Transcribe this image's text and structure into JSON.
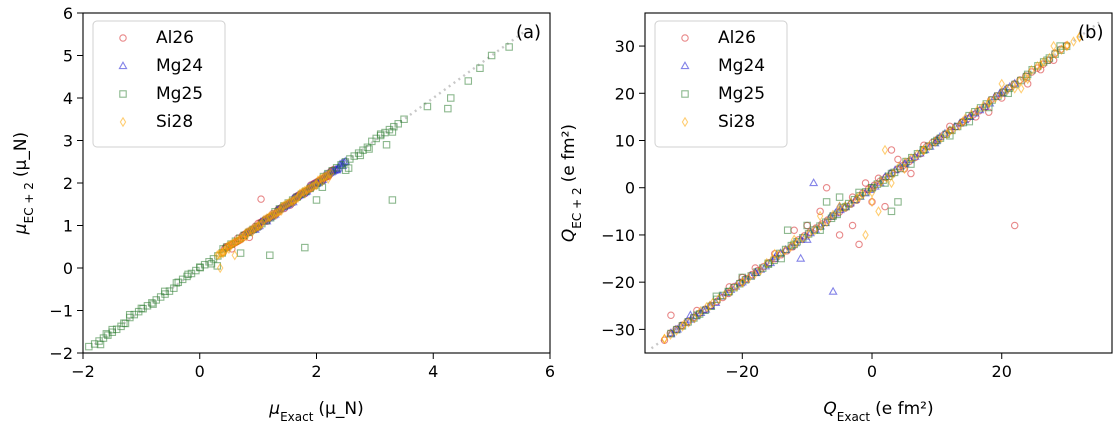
{
  "chart_data": [
    {
      "type": "scatter",
      "panel_label": "(a)",
      "xlabel": "μ_Exact (μ_N)",
      "ylabel": "μ_EC+2 (μ_N)",
      "xlim": [
        -2,
        6
      ],
      "ylim": [
        -2,
        6
      ],
      "xticks": [
        -2,
        0,
        2,
        4,
        6
      ],
      "yticks": [
        -2,
        -1,
        0,
        1,
        2,
        3,
        4,
        5,
        6
      ],
      "legend_position": "top-left",
      "reference_line": {
        "style": "dotted",
        "color": "#c8c8c8",
        "x": [
          -1.8,
          5.6
        ],
        "y": [
          -1.8,
          5.6
        ]
      },
      "series": [
        {
          "name": "Al26",
          "marker": "circle",
          "color": "#d62728",
          "points": [
            [
              0.85,
              0.72
            ],
            [
              1.05,
              1.62
            ],
            [
              1.25,
              1.28
            ],
            [
              0.55,
              0.45
            ],
            [
              1.55,
              1.48
            ],
            [
              0.95,
              0.98
            ],
            [
              1.35,
              1.32
            ],
            [
              0.75,
              0.72
            ],
            [
              1.9,
              1.95
            ],
            [
              2.1,
              2.05
            ],
            [
              1.15,
              1.1
            ],
            [
              0.65,
              0.7
            ],
            [
              1.45,
              1.4
            ],
            [
              1.7,
              1.68
            ],
            [
              0.45,
              0.5
            ],
            [
              1.0,
              1.05
            ],
            [
              1.8,
              1.75
            ],
            [
              2.2,
              2.15
            ]
          ],
          "dense_segment": [
            0.4,
            2.3
          ]
        },
        {
          "name": "Mg24",
          "marker": "triangle",
          "color": "#1f1fd6",
          "points": [
            [
              2.35,
              2.3
            ],
            [
              2.45,
              2.4
            ],
            [
              1.15,
              1.1
            ],
            [
              0.95,
              0.9
            ],
            [
              1.6,
              1.55
            ],
            [
              2.0,
              1.98
            ]
          ],
          "dense_segment": [
            0.8,
            2.5
          ]
        },
        {
          "name": "Mg25",
          "marker": "square",
          "color": "#2e7d32",
          "points": [
            [
              -1.9,
              -1.85
            ],
            [
              -1.7,
              -1.8
            ],
            [
              -1.5,
              -1.45
            ],
            [
              -1.3,
              -1.3
            ],
            [
              -1.2,
              -1.1
            ],
            [
              -1.0,
              -0.95
            ],
            [
              -0.8,
              -0.85
            ],
            [
              -0.6,
              -0.55
            ],
            [
              -0.4,
              -0.35
            ],
            [
              -0.2,
              -0.15
            ],
            [
              0.0,
              0.02
            ],
            [
              0.2,
              0.1
            ],
            [
              0.4,
              0.45
            ],
            [
              0.7,
              0.35
            ],
            [
              1.2,
              0.3
            ],
            [
              1.8,
              0.48
            ],
            [
              2.0,
              1.6
            ],
            [
              2.1,
              1.9
            ],
            [
              2.5,
              2.3
            ],
            [
              2.9,
              2.8
            ],
            [
              3.1,
              3.15
            ],
            [
              3.3,
              3.2
            ],
            [
              3.5,
              3.5
            ],
            [
              3.2,
              2.9
            ],
            [
              3.9,
              3.8
            ],
            [
              4.3,
              4.0
            ],
            [
              4.25,
              3.75
            ],
            [
              4.6,
              4.4
            ],
            [
              4.8,
              4.7
            ],
            [
              5.0,
              5.0
            ],
            [
              5.3,
              5.2
            ],
            [
              3.3,
              1.6
            ],
            [
              2.55,
              2.35
            ],
            [
              2.75,
              2.65
            ],
            [
              -1.6,
              -1.55
            ],
            [
              0.3,
              0.05
            ]
          ],
          "dense_segment": [
            -1.8,
            3.4
          ]
        },
        {
          "name": "Si28",
          "marker": "diamond",
          "color": "#ffa500",
          "points": [
            [
              0.5,
              0.45
            ],
            [
              0.6,
              0.3
            ],
            [
              0.4,
              0.35
            ],
            [
              0.35,
              0.0
            ],
            [
              0.8,
              0.75
            ],
            [
              1.0,
              0.98
            ],
            [
              1.2,
              1.2
            ],
            [
              1.4,
              1.35
            ],
            [
              1.6,
              1.55
            ],
            [
              1.8,
              1.75
            ],
            [
              2.0,
              1.95
            ],
            [
              2.2,
              2.1
            ],
            [
              0.9,
              0.85
            ],
            [
              1.3,
              1.25
            ],
            [
              1.7,
              1.7
            ],
            [
              2.1,
              2.05
            ]
          ],
          "dense_segment": [
            0.3,
            2.25
          ]
        }
      ]
    },
    {
      "type": "scatter",
      "panel_label": "(b)",
      "xlabel": "Q_Exact (e fm²)",
      "ylabel": "Q_EC+2 (e fm²)",
      "xlim": [
        -35,
        37
      ],
      "ylim": [
        -35,
        37
      ],
      "xticks": [
        -20,
        0,
        20
      ],
      "yticks": [
        -30,
        -20,
        -10,
        0,
        10,
        20,
        30
      ],
      "legend_position": "top-left",
      "reference_line": {
        "style": "dotted",
        "color": "#c8c8c8",
        "x": [
          -34,
          35
        ],
        "y": [
          -34,
          35
        ]
      },
      "series": [
        {
          "name": "Al26",
          "marker": "circle",
          "color": "#d62728",
          "points": [
            [
              -31,
              -27
            ],
            [
              -27,
              -26
            ],
            [
              -22,
              -21
            ],
            [
              -18,
              -17
            ],
            [
              -15,
              -14
            ],
            [
              -12,
              -9
            ],
            [
              -10,
              -8
            ],
            [
              -8,
              -5
            ],
            [
              -7,
              0
            ],
            [
              -3,
              -2
            ],
            [
              -2,
              -12
            ],
            [
              -3,
              -8
            ],
            [
              -1,
              1
            ],
            [
              0,
              -3
            ],
            [
              2,
              -4
            ],
            [
              3,
              8
            ],
            [
              4,
              6
            ],
            [
              5,
              4
            ],
            [
              6,
              3
            ],
            [
              8,
              9
            ],
            [
              10,
              10
            ],
            [
              12,
              13
            ],
            [
              14,
              14
            ],
            [
              16,
              15
            ],
            [
              18,
              16
            ],
            [
              20,
              19
            ],
            [
              22,
              -8
            ],
            [
              24,
              22
            ],
            [
              26,
              25
            ],
            [
              28,
              27
            ],
            [
              -20,
              -19
            ],
            [
              -5,
              -10
            ],
            [
              1,
              2
            ]
          ],
          "dense_segment": [
            -32,
            30
          ]
        },
        {
          "name": "Mg24",
          "marker": "triangle",
          "color": "#1f1fd6",
          "points": [
            [
              -31,
              -31
            ],
            [
              -30,
              -30
            ],
            [
              -28,
              -27
            ],
            [
              -25,
              -25
            ],
            [
              -20,
              -20
            ],
            [
              -15,
              -15
            ],
            [
              -10,
              -11
            ],
            [
              -9,
              1
            ],
            [
              -6,
              -22
            ],
            [
              -11,
              -15
            ],
            [
              -5,
              -4
            ],
            [
              0,
              0
            ],
            [
              5,
              5
            ],
            [
              10,
              10
            ],
            [
              15,
              15
            ],
            [
              20,
              20
            ],
            [
              -26,
              -26
            ],
            [
              -18,
              -18
            ]
          ],
          "dense_segment": [
            -31,
            22
          ]
        },
        {
          "name": "Mg25",
          "marker": "square",
          "color": "#2e7d32",
          "points": [
            [
              -24,
              -23
            ],
            [
              -20,
              -19
            ],
            [
              -16,
              -16
            ],
            [
              -13,
              -9
            ],
            [
              -12,
              -12
            ],
            [
              -10,
              -8
            ],
            [
              -8,
              -9
            ],
            [
              -6,
              -6
            ],
            [
              -5,
              -2
            ],
            [
              -4,
              -4
            ],
            [
              -2,
              -1
            ],
            [
              0,
              0
            ],
            [
              2,
              1
            ],
            [
              3,
              -5
            ],
            [
              4,
              -3
            ],
            [
              3,
              3
            ],
            [
              6,
              5
            ],
            [
              8,
              8
            ],
            [
              10,
              10
            ],
            [
              12,
              11
            ],
            [
              15,
              14
            ],
            [
              18,
              17
            ],
            [
              21,
              20
            ],
            [
              24,
              24
            ],
            [
              27,
              27
            ],
            [
              29,
              30
            ],
            [
              -7,
              -3
            ],
            [
              -14,
              -15
            ],
            [
              -27,
              -27
            ],
            [
              -22,
              -22
            ]
          ],
          "dense_segment": [
            -31,
            30
          ]
        },
        {
          "name": "Si28",
          "marker": "diamond",
          "color": "#ffa500",
          "points": [
            [
              -32,
              -32
            ],
            [
              -29,
              -29
            ],
            [
              -25,
              -25
            ],
            [
              -20,
              -20
            ],
            [
              -15,
              -14
            ],
            [
              -12,
              -11
            ],
            [
              -8,
              -6
            ],
            [
              -5,
              -4
            ],
            [
              -2,
              -2
            ],
            [
              0,
              -1
            ],
            [
              1,
              -5
            ],
            [
              2,
              8
            ],
            [
              3,
              1
            ],
            [
              5,
              4
            ],
            [
              8,
              8
            ],
            [
              12,
              12
            ],
            [
              14,
              14
            ],
            [
              18,
              18
            ],
            [
              20,
              22
            ],
            [
              22,
              21
            ],
            [
              24,
              23
            ],
            [
              26,
              26
            ],
            [
              28,
              30
            ],
            [
              30,
              30
            ],
            [
              32,
              32
            ],
            [
              23,
              21
            ],
            [
              -1,
              -10
            ],
            [
              0,
              -3
            ]
          ],
          "dense_segment": [
            -32,
            32
          ]
        }
      ]
    }
  ]
}
